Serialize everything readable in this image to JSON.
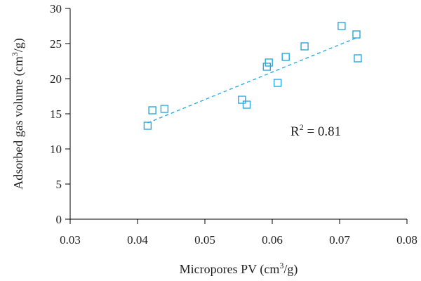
{
  "chart_data": {
    "type": "scatter",
    "xlabel_main": "Micropores PV (cm",
    "xlabel_sup": "3",
    "xlabel_tail": "/g)",
    "ylabel_main": "Adsorbed gas volume (cm",
    "ylabel_sup": "3",
    "ylabel_tail": "/g)",
    "xlim": [
      0.03,
      0.08
    ],
    "ylim": [
      0,
      30
    ],
    "xticks": [
      "0.03",
      "0.04",
      "0.05",
      "0.06",
      "0.07",
      "0.08"
    ],
    "yticks": [
      "0",
      "5",
      "10",
      "15",
      "20",
      "25",
      "30"
    ],
    "series": [
      {
        "marker": "open-square",
        "color": "#29a9e1",
        "points": [
          {
            "x": 0.0415,
            "y": 13.3
          },
          {
            "x": 0.0422,
            "y": 15.5
          },
          {
            "x": 0.044,
            "y": 15.7
          },
          {
            "x": 0.0555,
            "y": 17.0
          },
          {
            "x": 0.0562,
            "y": 16.3
          },
          {
            "x": 0.0592,
            "y": 21.7
          },
          {
            "x": 0.0595,
            "y": 22.3
          },
          {
            "x": 0.0608,
            "y": 19.4
          },
          {
            "x": 0.062,
            "y": 23.1
          },
          {
            "x": 0.0648,
            "y": 24.6
          },
          {
            "x": 0.0703,
            "y": 27.5
          },
          {
            "x": 0.0725,
            "y": 26.3
          },
          {
            "x": 0.0727,
            "y": 22.9
          }
        ]
      }
    ],
    "trendline": {
      "style": "dashed",
      "color": "#29a9e1",
      "x": [
        0.0415,
        0.0727
      ],
      "y": [
        13.7,
        25.9
      ]
    },
    "annotation": {
      "label_main": "R",
      "label_sup": "2",
      "label_tail": " = 0.81"
    }
  }
}
